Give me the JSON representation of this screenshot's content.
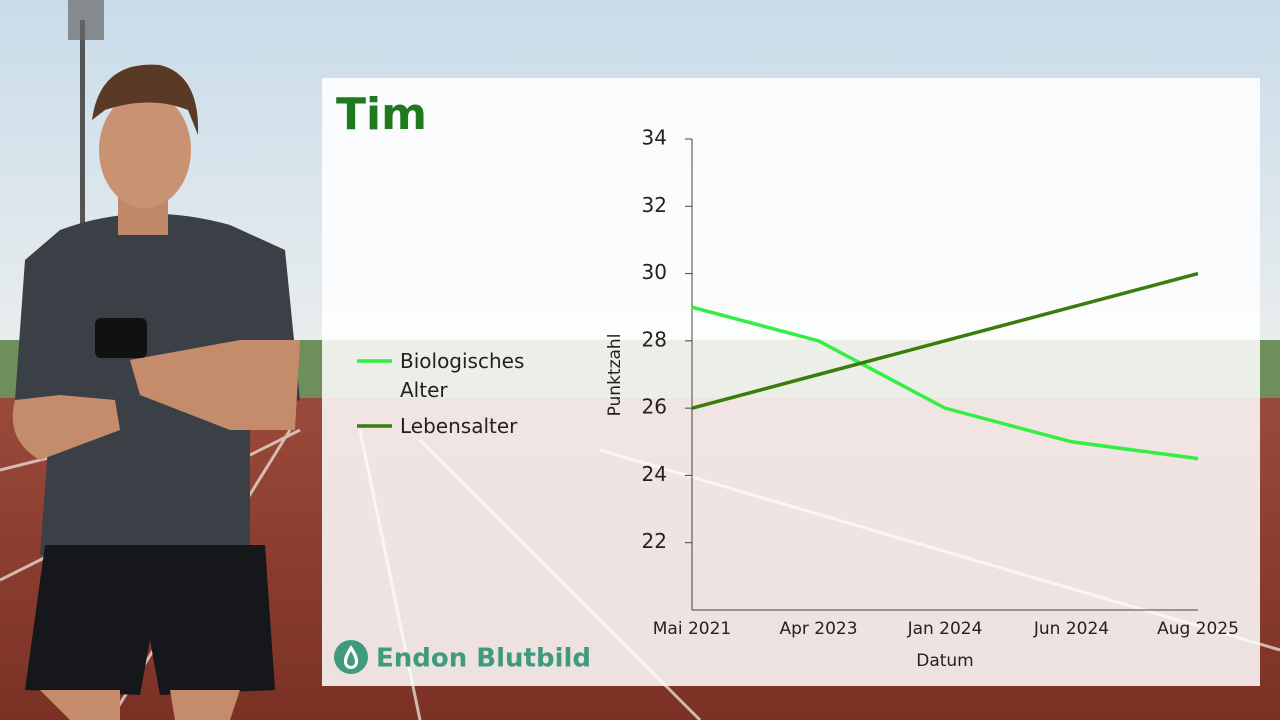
{
  "chart_data": {
    "type": "line",
    "title": "Tim",
    "categories": [
      "Mai 2021",
      "Apr 2023",
      "Jan 2024",
      "Jun 2024",
      "Aug 2025"
    ],
    "series": [
      {
        "name": "Biologisches Alter",
        "color": "#33ee44",
        "values": [
          29,
          28,
          26,
          25,
          24.5
        ]
      },
      {
        "name": "Lebensalter",
        "color": "#3b7d0c",
        "values": [
          26,
          27,
          28,
          29,
          30
        ]
      }
    ],
    "ylim": [
      20,
      34
    ],
    "yticks": [
      22,
      24,
      26,
      28,
      30,
      32,
      34
    ],
    "xlabel": "Datum",
    "ylabel": "Punktzahl",
    "grid": false
  },
  "brand": "Endon Blutbild"
}
